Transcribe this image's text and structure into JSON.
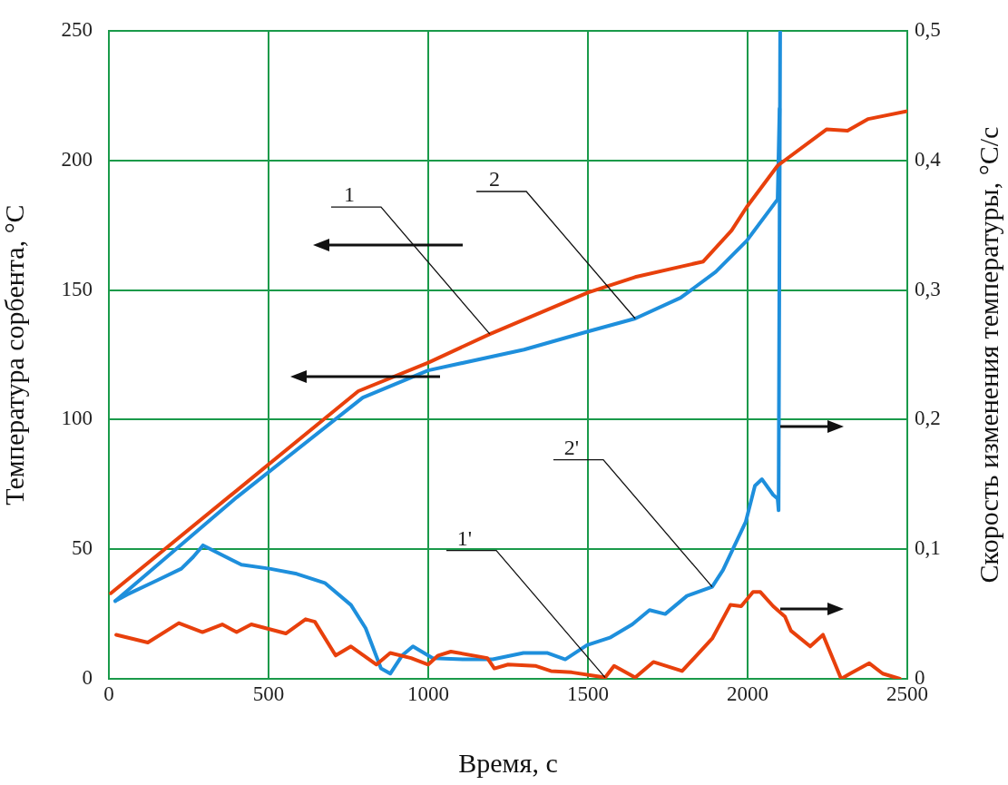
{
  "chart_data": {
    "type": "line",
    "xlabel": "Время, с",
    "ylabel": "Температура сорбента, °C",
    "y2label": "Скорость изменения температуры, °C/с",
    "xlim": [
      0,
      2500
    ],
    "xticks": [
      0,
      500,
      1000,
      1500,
      2000,
      2500
    ],
    "ylim": [
      0,
      250
    ],
    "yticks": [
      0,
      50,
      100,
      150,
      200,
      250
    ],
    "y2lim": [
      0,
      0.5
    ],
    "y2ticks": [
      {
        "value": 0,
        "label": "0"
      },
      {
        "value": 0.1,
        "label": "0,1"
      },
      {
        "value": 0.2,
        "label": "0,2"
      },
      {
        "value": 0.3,
        "label": "0,3"
      },
      {
        "value": 0.4,
        "label": "0,4"
      },
      {
        "value": 0.5,
        "label": "0,5"
      }
    ],
    "grid": true,
    "legend": false,
    "marker": "none",
    "line_style": "solid",
    "series": [
      {
        "color": "#e8400c",
        "x": [
          6,
          781,
          1000,
          1193,
          1500,
          1648,
          1790,
          1861,
          1950,
          1997,
          2094,
          2247,
          2313,
          2378,
          2500
        ],
        "values": [
          33,
          111,
          122,
          133,
          149,
          155,
          159,
          161,
          173,
          182,
          198,
          212,
          211.5,
          216,
          219
        ]
      },
      {
        "color": "#1e8fdc",
        "x": [
          20,
          400,
          795,
          1000,
          1300,
          1500,
          1648,
          1790,
          1900,
          1997,
          2094,
          2100
        ],
        "values": [
          30,
          70,
          108.5,
          119,
          127,
          134,
          139,
          147,
          157,
          169,
          185,
          220
        ]
      },
      {
        "color": "#e8400c",
        "axis": "y2",
        "x": [
          23,
          122,
          219,
          293,
          355,
          400,
          446,
          554,
          616,
          645,
          710,
          758,
          838,
          881,
          946,
          1000,
          1031,
          1071,
          1185,
          1207,
          1250,
          1335,
          1384,
          1449,
          1554,
          1582,
          1648,
          1705,
          1795,
          1889,
          1946,
          1980,
          2017,
          2040,
          2080,
          2117,
          2136,
          2196,
          2236,
          2293,
          2321,
          2381,
          2423,
          2477
        ],
        "values": [
          0.034,
          0.028,
          0.043,
          0.036,
          0.042,
          0.036,
          0.042,
          0.035,
          0.046,
          0.044,
          0.018,
          0.025,
          0.011,
          0.02,
          0.016,
          0.011,
          0.018,
          0.021,
          0.016,
          0.008,
          0.011,
          0.01,
          0.006,
          0.005,
          0.001,
          0.01,
          0.001,
          0.013,
          0.006,
          0.031,
          0.057,
          0.056,
          0.067,
          0.067,
          0.056,
          0.048,
          0.037,
          0.025,
          0.034,
          0,
          0.004,
          0.012,
          0.004,
          0
        ]
      },
      {
        "color": "#1e8fdc",
        "axis": "y2",
        "x": [
          20,
          57,
          151,
          227,
          264,
          295,
          415,
          503,
          588,
          676,
          758,
          804,
          852,
          881,
          918,
          952,
          1014,
          1108,
          1202,
          1298,
          1372,
          1429,
          1497,
          1571,
          1639,
          1693,
          1742,
          1810,
          1889,
          1923,
          1994,
          2023,
          2045,
          2080,
          2094,
          2097,
          2102
        ],
        "values": [
          0.06,
          0.065,
          0.076,
          0.085,
          0.094,
          0.103,
          0.088,
          0.085,
          0.081,
          0.074,
          0.057,
          0.039,
          0.008,
          0.004,
          0.018,
          0.025,
          0.016,
          0.015,
          0.015,
          0.02,
          0.02,
          0.015,
          0.026,
          0.032,
          0.042,
          0.053,
          0.05,
          0.064,
          0.071,
          0.084,
          0.121,
          0.149,
          0.154,
          0.142,
          0.139,
          0.13,
          0.5
        ]
      }
    ],
    "annotations": [
      {
        "text": "1",
        "x": 1193,
        "y": 133
      },
      {
        "text": "2",
        "x": 1648,
        "y": 139
      },
      {
        "text": "2'",
        "x": 1889,
        "y": 35.5
      },
      {
        "text": "1'",
        "x": 1554,
        "y": 0.5
      }
    ]
  }
}
